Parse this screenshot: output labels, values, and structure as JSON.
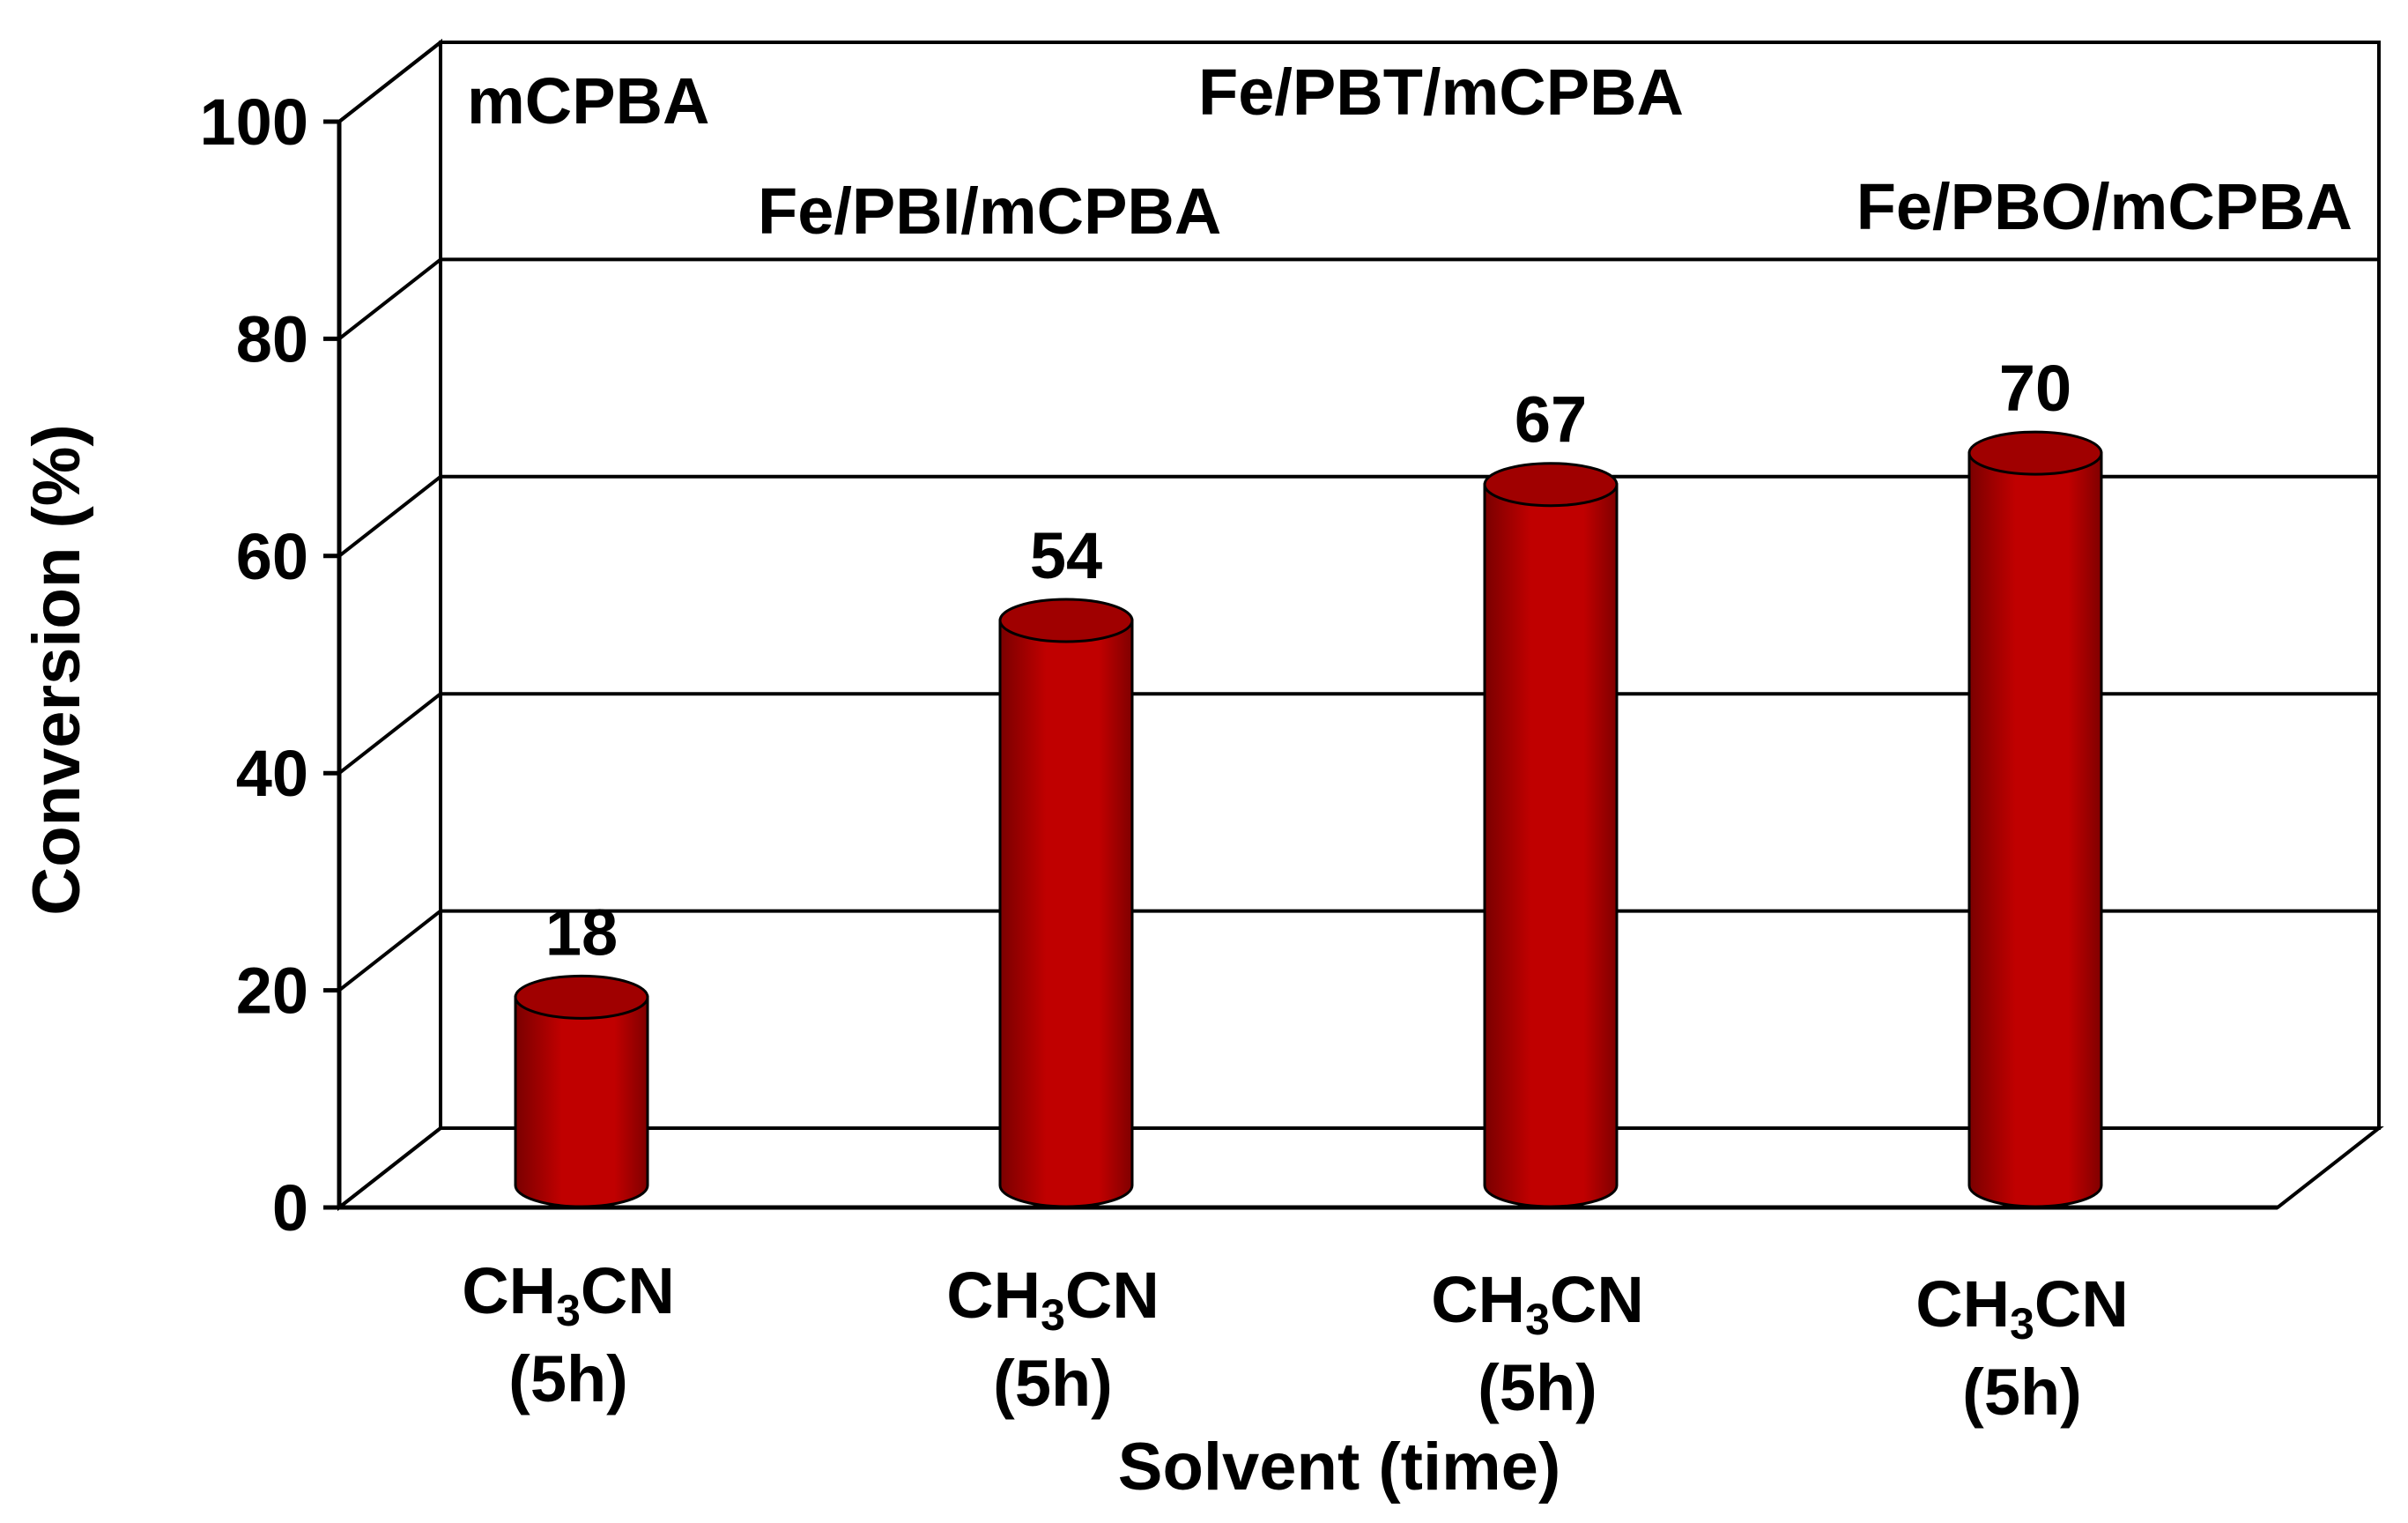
{
  "chart_data": {
    "type": "bar",
    "style": "3d-cylinder",
    "color": "#C00000",
    "xlabel": "Solvent (time)",
    "ylabel": "Conversion (%)",
    "ylim": [
      0,
      100
    ],
    "yticks": [
      0,
      20,
      40,
      60,
      80,
      100
    ],
    "grid": true,
    "categories": [
      {
        "line1": "CH",
        "sub": "3",
        "line1b": "CN",
        "line2": "(5h)"
      },
      {
        "line1": "CH",
        "sub": "3",
        "line1b": "CN",
        "line2": "(5h)"
      },
      {
        "line1": "CH",
        "sub": "3",
        "line1b": "CN",
        "line2": "(5h)"
      },
      {
        "line1": "CH",
        "sub": "3",
        "line1b": "CN",
        "line2": "(5h)"
      }
    ],
    "values": [
      18,
      54,
      67,
      70
    ],
    "data_labels": [
      "18",
      "54",
      "67",
      "70"
    ],
    "series_labels": [
      "mCPBA",
      "Fe/PBI/mCPBA",
      "Fe/PBT/mCPBA",
      "Fe/PBO/mCPBA"
    ]
  }
}
